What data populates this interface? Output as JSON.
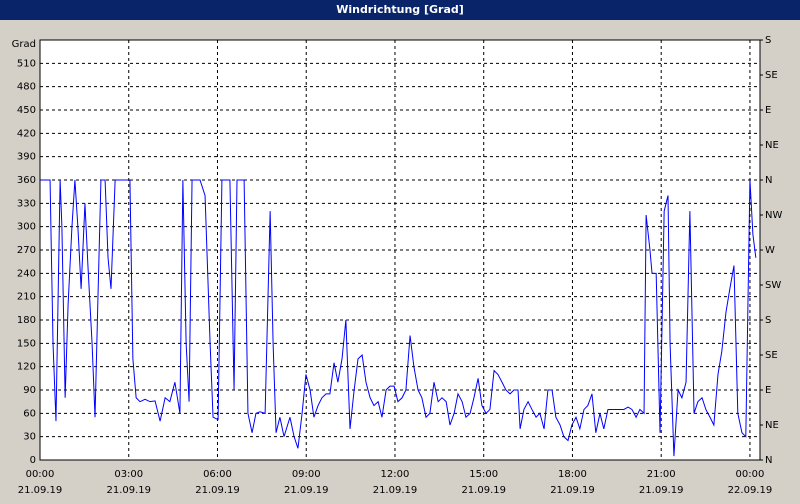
{
  "chart_data": {
    "type": "line",
    "title": "Windrichtung [Grad]",
    "ylabel": "Grad",
    "x": [
      0,
      0.34,
      0.44,
      0.54,
      0.68,
      0.74,
      0.85,
      0.95,
      1.08,
      1.18,
      1.28,
      1.39,
      1.52,
      1.62,
      1.76,
      1.86,
      1.96,
      2.06,
      2.2,
      2.3,
      2.4,
      2.54,
      2.7,
      2.87,
      3.04,
      3.14,
      3.25,
      3.38,
      3.55,
      3.72,
      3.89,
      4.06,
      4.23,
      4.39,
      4.56,
      4.73,
      4.83,
      4.94,
      5.04,
      5.14,
      5.24,
      5.41,
      5.58,
      5.75,
      5.85,
      6.02,
      6.15,
      6.29,
      6.42,
      6.56,
      6.66,
      6.76,
      6.9,
      7.03,
      7.17,
      7.3,
      7.44,
      7.61,
      7.78,
      7.88,
      7.98,
      8.11,
      8.25,
      8.45,
      8.59,
      8.72,
      8.86,
      8.99,
      9.13,
      9.26,
      9.4,
      9.53,
      9.67,
      9.8,
      9.94,
      10.07,
      10.21,
      10.34,
      10.48,
      10.62,
      10.75,
      10.89,
      11.02,
      11.16,
      11.29,
      11.43,
      11.56,
      11.7,
      11.83,
      11.97,
      12.1,
      12.24,
      12.37,
      12.51,
      12.64,
      12.78,
      12.91,
      13.05,
      13.18,
      13.32,
      13.46,
      13.59,
      13.73,
      13.86,
      14.0,
      14.13,
      14.27,
      14.4,
      14.54,
      14.67,
      14.81,
      14.94,
      15.08,
      15.21,
      15.35,
      15.48,
      15.62,
      15.75,
      15.89,
      16.02,
      16.16,
      16.23,
      16.36,
      16.5,
      16.63,
      16.77,
      16.9,
      17.04,
      17.17,
      17.31,
      17.44,
      17.58,
      17.71,
      17.85,
      17.98,
      18.12,
      18.25,
      18.39,
      18.52,
      18.66,
      18.79,
      18.93,
      19.06,
      19.2,
      19.33,
      19.47,
      19.61,
      19.74,
      19.88,
      20.01,
      20.15,
      20.28,
      20.42,
      20.49,
      20.62,
      20.69,
      20.83,
      20.96,
      21.1,
      21.23,
      21.3,
      21.43,
      21.57,
      21.7,
      21.84,
      21.97,
      22.11,
      22.24,
      22.38,
      22.51,
      22.65,
      22.78,
      22.92,
      23.05,
      23.19,
      23.32,
      23.46,
      23.59,
      23.73,
      23.86,
      24.0,
      24.1,
      24.2
    ],
    "series": [
      {
        "name": "Windrichtung",
        "color": "#0000ff",
        "values": [
          360,
          360,
          150,
          50,
          360,
          300,
          80,
          200,
          300,
          360,
          300,
          220,
          330,
          250,
          150,
          55,
          210,
          360,
          360,
          260,
          220,
          360,
          360,
          360,
          360,
          130,
          80,
          75,
          78,
          75,
          76,
          50,
          80,
          75,
          100,
          60,
          360,
          150,
          75,
          360,
          360,
          360,
          340,
          150,
          55,
          52,
          360,
          360,
          360,
          90,
          360,
          360,
          360,
          60,
          35,
          60,
          62,
          60,
          320,
          150,
          35,
          55,
          30,
          55,
          30,
          15,
          60,
          110,
          90,
          55,
          70,
          80,
          85,
          85,
          125,
          100,
          130,
          180,
          40,
          90,
          130,
          135,
          100,
          80,
          70,
          75,
          55,
          90,
          95,
          95,
          75,
          80,
          90,
          160,
          120,
          90,
          80,
          55,
          60,
          100,
          75,
          80,
          75,
          45,
          60,
          85,
          75,
          55,
          60,
          80,
          105,
          70,
          60,
          65,
          115,
          110,
          100,
          90,
          85,
          90,
          90,
          40,
          65,
          75,
          65,
          55,
          60,
          40,
          90,
          90,
          55,
          45,
          30,
          25,
          45,
          55,
          40,
          65,
          70,
          85,
          35,
          60,
          40,
          65,
          65,
          65,
          65,
          65,
          68,
          65,
          55,
          65,
          60,
          315,
          270,
          240,
          240,
          35,
          320,
          340,
          150,
          5,
          90,
          80,
          100,
          320,
          60,
          75,
          80,
          65,
          55,
          45,
          110,
          140,
          190,
          220,
          250,
          60,
          35,
          30,
          360,
          290,
          260
        ]
      }
    ],
    "xlim": [
      0,
      24.34
    ],
    "ylim": [
      0,
      540
    ],
    "y2lim": [
      0,
      540
    ],
    "xticks": [
      {
        "value": 0,
        "label": "00:00"
      },
      {
        "value": 3,
        "label": "03:00"
      },
      {
        "value": 6,
        "label": "06:00"
      },
      {
        "value": 9,
        "label": "09:00"
      },
      {
        "value": 12,
        "label": "12:00"
      },
      {
        "value": 15,
        "label": "15:00"
      },
      {
        "value": 18,
        "label": "18:00"
      },
      {
        "value": 21,
        "label": "21:00"
      },
      {
        "value": 24,
        "label": "00:00"
      }
    ],
    "xtick_dates": [
      "21.09.19",
      "21.09.19",
      "21.09.19",
      "21.09.19",
      "21.09.19",
      "21.09.19",
      "21.09.19",
      "21.09.19",
      "22.09.19"
    ],
    "yticks": [
      0,
      30,
      60,
      90,
      120,
      150,
      180,
      210,
      240,
      270,
      300,
      330,
      360,
      390,
      420,
      450,
      480,
      510
    ],
    "y2ticks": [
      {
        "value": 0,
        "label": "N"
      },
      {
        "value": 45,
        "label": "NE"
      },
      {
        "value": 90,
        "label": "E"
      },
      {
        "value": 135,
        "label": "SE"
      },
      {
        "value": 180,
        "label": "S"
      },
      {
        "value": 225,
        "label": "SW"
      },
      {
        "value": 270,
        "label": "W"
      },
      {
        "value": 315,
        "label": "NW"
      },
      {
        "value": 360,
        "label": "N"
      },
      {
        "value": 405,
        "label": "NE"
      },
      {
        "value": 450,
        "label": "E"
      },
      {
        "value": 495,
        "label": "SE"
      },
      {
        "value": 540,
        "label": "S"
      }
    ],
    "grid": true
  }
}
